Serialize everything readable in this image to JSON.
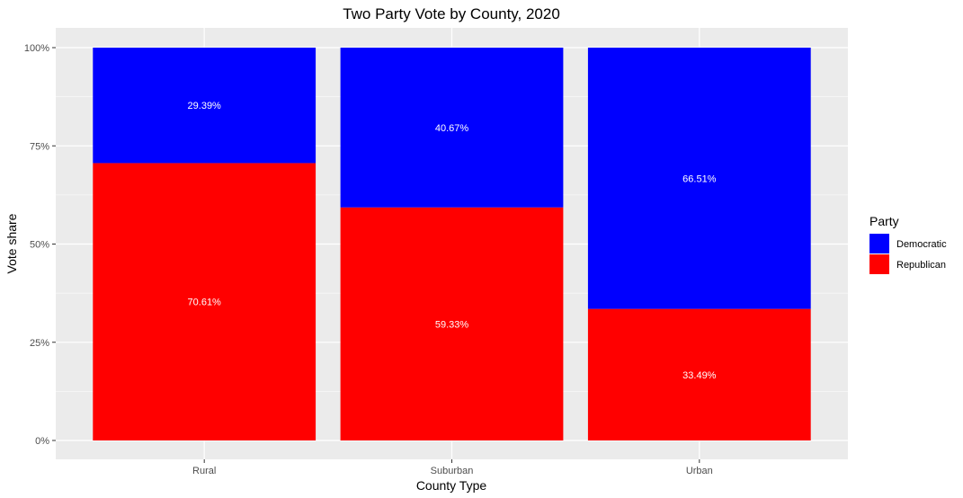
{
  "chart_data": {
    "type": "bar",
    "stacked": true,
    "title": "Two Party Vote by County, 2020",
    "xlabel": "County Type",
    "ylabel": "Vote share",
    "categories": [
      "Rural",
      "Suburban",
      "Urban"
    ],
    "ylim": [
      0,
      1
    ],
    "yticks": [
      0,
      0.25,
      0.5,
      0.75,
      1.0
    ],
    "ytick_labels": [
      "0%",
      "25%",
      "50%",
      "75%",
      "100%"
    ],
    "grid": true,
    "legend": {
      "title": "Party",
      "placement": "right",
      "entries": [
        "Democratic",
        "Republican"
      ]
    },
    "series": [
      {
        "name": "Republican",
        "color": "#ff0000",
        "values": [
          0.7061,
          0.5933,
          0.3349
        ],
        "labels": [
          "70.61%",
          "59.33%",
          "33.49%"
        ]
      },
      {
        "name": "Democratic",
        "color": "#0000ff",
        "values": [
          0.2939,
          0.4067,
          0.6651
        ],
        "labels": [
          "29.39%",
          "40.67%",
          "66.51%"
        ]
      }
    ]
  }
}
